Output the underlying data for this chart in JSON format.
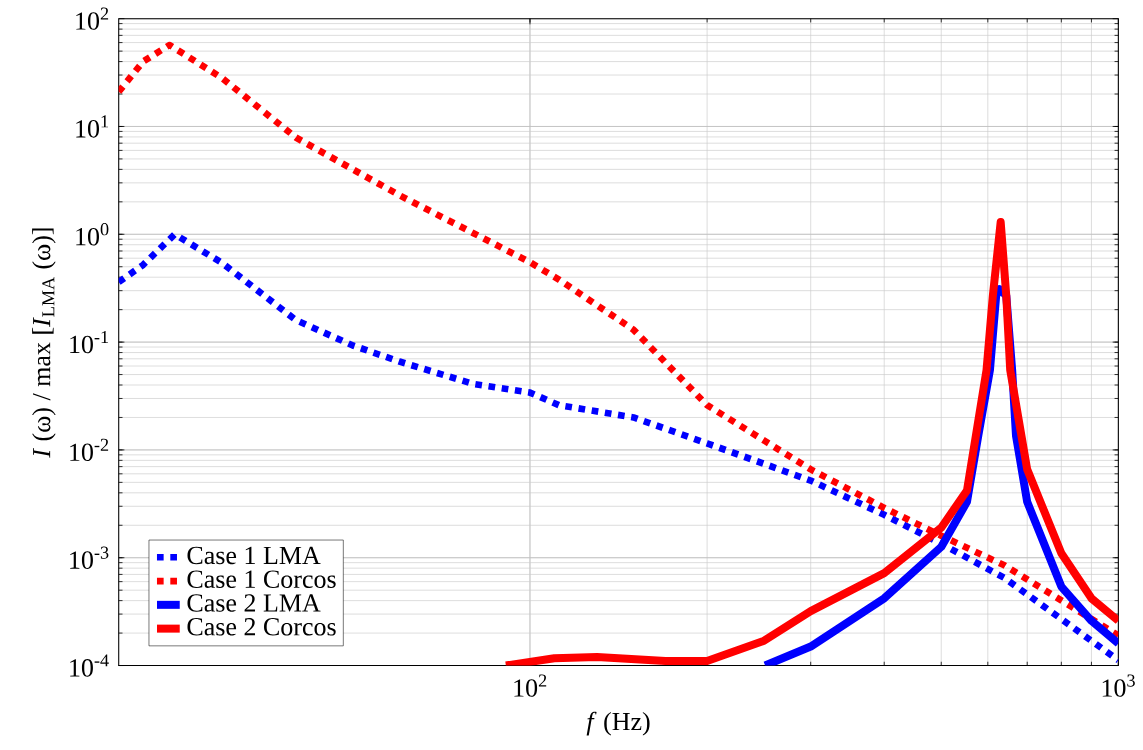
{
  "chart_data": {
    "type": "line",
    "xlabel": "*f* (Hz)",
    "ylabel": "*I* (ω) / max [*I*$_{LMA}$ (ω)]",
    "log": "xy",
    "grid": true,
    "legend": "bottom left",
    "xlim": [
      20,
      1000
    ],
    "ylim": [
      0.0001,
      100
    ],
    "xticks": [
      {
        "value": 100,
        "label": "10$^{2}$"
      },
      {
        "value": 1000,
        "label": "10$^{3}$"
      }
    ],
    "yticks": [
      {
        "value": 0.0001,
        "label": "10$^{-4}$"
      },
      {
        "value": 0.001,
        "label": "10$^{-3}$"
      },
      {
        "value": 0.01,
        "label": "10$^{-2}$"
      },
      {
        "value": 0.1,
        "label": "10$^{-1}$"
      },
      {
        "value": 1,
        "label": "10$^{0}$"
      },
      {
        "value": 10,
        "label": "10$^{1}$"
      },
      {
        "value": 100,
        "label": "10$^{2}$"
      }
    ],
    "series": [
      {
        "name": "Case 1 LMA",
        "color": "#0000ff",
        "line_style": "dotted",
        "x": [
          20,
          22,
          24.9,
          30,
          40,
          50,
          60,
          80,
          100,
          112,
          150,
          200,
          300,
          400,
          500,
          640,
          1000
        ],
        "values": [
          0.36,
          0.52,
          1.0,
          0.54,
          0.16,
          0.093,
          0.066,
          0.041,
          0.034,
          0.026,
          0.02,
          0.0115,
          0.0052,
          0.0025,
          0.00135,
          0.00065,
          0.000112
        ]
      },
      {
        "name": "Case 1 Corcos",
        "color": "#ff0000",
        "line_style": "dotted",
        "x": [
          20,
          22,
          24.4,
          30,
          40,
          50,
          60,
          80,
          100,
          112,
          150,
          200,
          300,
          400,
          500,
          640,
          1000
        ],
        "values": [
          21,
          40,
          57,
          28,
          7.9,
          4.0,
          2.3,
          1.03,
          0.55,
          0.38,
          0.13,
          0.026,
          0.0066,
          0.0029,
          0.0016,
          0.00085,
          0.00019
        ]
      },
      {
        "name": "Case 2 LMA",
        "color": "#0000ff",
        "line_style": "solid",
        "x": [
          251,
          300,
          400,
          500,
          553,
          578,
          605,
          620,
          628,
          645,
          660,
          670,
          700,
          800,
          900,
          1000
        ],
        "values": [
          0.0001,
          0.00015,
          0.00042,
          0.00126,
          0.0033,
          0.0135,
          0.055,
          0.27,
          0.31,
          0.27,
          0.055,
          0.0135,
          0.0033,
          0.00054,
          0.00026,
          0.00016
        ]
      },
      {
        "name": "Case 2 Corcos",
        "color": "#ff0000",
        "line_style": "solid",
        "x": [
          91,
          110,
          130,
          170,
          200,
          250,
          300,
          400,
          500,
          553,
          597,
          612,
          631,
          645,
          655,
          700,
          800,
          900,
          1000
        ],
        "values": [
          0.0001,
          0.000117,
          0.00012,
          0.00011,
          0.00011,
          0.00017,
          0.00032,
          0.00072,
          0.0019,
          0.0042,
          0.055,
          0.27,
          1.3,
          0.27,
          0.055,
          0.0066,
          0.0011,
          0.00042,
          0.00026
        ]
      }
    ]
  }
}
